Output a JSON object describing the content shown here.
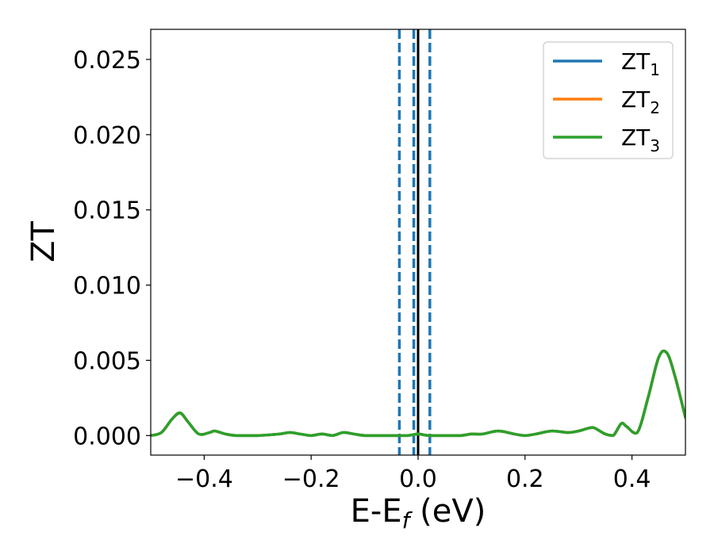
{
  "chart_data": {
    "type": "line",
    "xlabel": {
      "main": "E-E",
      "sub": "f",
      "suffix": " (eV)"
    },
    "ylabel": "ZT",
    "xlim": [
      -0.5,
      0.5
    ],
    "ylim": [
      -0.0013,
      0.027
    ],
    "xticks": [
      -0.4,
      -0.2,
      0.0,
      0.2,
      0.4
    ],
    "xtick_labels": [
      "−0.4",
      "−0.2",
      "0.0",
      "0.2",
      "0.4"
    ],
    "yticks": [
      0.0,
      0.005,
      0.01,
      0.015,
      0.02,
      0.025
    ],
    "ytick_labels": [
      "0.000",
      "0.005",
      "0.010",
      "0.015",
      "0.020",
      "0.025"
    ],
    "legend_position": "top-right",
    "grid": false,
    "vlines": [
      {
        "x": -0.035,
        "style": "dashed",
        "color": "#1f77b4"
      },
      {
        "x": -0.008,
        "style": "dashed",
        "color": "#1f77b4"
      },
      {
        "x": 0.0,
        "style": "solid",
        "color": "#000000"
      },
      {
        "x": 0.022,
        "style": "dashed",
        "color": "#1f77b4"
      }
    ],
    "x": [
      -0.5,
      -0.48,
      -0.46,
      -0.445,
      -0.43,
      -0.41,
      -0.39,
      -0.38,
      -0.36,
      -0.34,
      -0.3,
      -0.26,
      -0.24,
      -0.22,
      -0.2,
      -0.18,
      -0.16,
      -0.14,
      -0.12,
      -0.1,
      -0.08,
      -0.05,
      -0.02,
      0.0,
      0.02,
      0.05,
      0.08,
      0.1,
      0.12,
      0.15,
      0.18,
      0.2,
      0.22,
      0.25,
      0.28,
      0.3,
      0.32,
      0.33,
      0.35,
      0.365,
      0.38,
      0.39,
      0.41,
      0.43,
      0.45,
      0.465,
      0.48,
      0.5
    ],
    "series": [
      {
        "name": "ZT1",
        "label_main": "ZT",
        "label_sub": "1",
        "color": "#1f77b4",
        "values": [
          0.0,
          0.0002,
          0.0011,
          0.0015,
          0.0009,
          0.0001,
          0.0002,
          0.0003,
          0.0001,
          0.0,
          0.0,
          0.0001,
          0.0002,
          0.0001,
          0.0,
          0.0001,
          0.0,
          0.0002,
          0.0001,
          0.0,
          0.0,
          0.0,
          0.0,
          0.0001,
          0.0,
          0.0,
          0.0,
          0.0001,
          0.0001,
          0.0003,
          0.0001,
          0.0,
          0.0001,
          0.0003,
          0.0002,
          0.0003,
          0.0005,
          0.0005,
          0.0001,
          0.0,
          0.0008,
          0.0006,
          0.0002,
          0.0025,
          0.0052,
          0.0055,
          0.004,
          0.0012
        ]
      },
      {
        "name": "ZT2",
        "label_main": "ZT",
        "label_sub": "2",
        "color": "#ff7f0e",
        "values": [
          0.0,
          0.0002,
          0.0011,
          0.0015,
          0.0009,
          0.0001,
          0.0002,
          0.0003,
          0.0001,
          0.0,
          0.0,
          0.0001,
          0.0002,
          0.0001,
          0.0,
          0.0001,
          0.0,
          0.0002,
          0.0001,
          0.0,
          0.0,
          0.0,
          0.0,
          0.0001,
          0.0,
          0.0,
          0.0,
          0.0001,
          0.0001,
          0.0003,
          0.0001,
          0.0,
          0.0001,
          0.0003,
          0.0002,
          0.0003,
          0.0005,
          0.0005,
          0.0001,
          0.0,
          0.0008,
          0.0006,
          0.0002,
          0.0025,
          0.0052,
          0.0055,
          0.004,
          0.0012
        ]
      },
      {
        "name": "ZT3",
        "label_main": "ZT",
        "label_sub": "3",
        "color": "#2ca02c",
        "values": [
          0.0,
          0.0002,
          0.0011,
          0.0015,
          0.0009,
          0.0001,
          0.0002,
          0.0003,
          0.0001,
          0.0,
          0.0,
          0.0001,
          0.0002,
          0.0001,
          0.0,
          0.0001,
          0.0,
          0.0002,
          0.0001,
          0.0,
          0.0,
          0.0,
          0.0,
          0.0001,
          0.0,
          0.0,
          0.0,
          0.0001,
          0.0001,
          0.0003,
          0.0001,
          0.0,
          0.0001,
          0.0003,
          0.0002,
          0.0003,
          0.0005,
          0.0005,
          0.0001,
          0.0,
          0.0008,
          0.0006,
          0.0002,
          0.0025,
          0.0052,
          0.0055,
          0.004,
          0.0012
        ]
      }
    ]
  }
}
